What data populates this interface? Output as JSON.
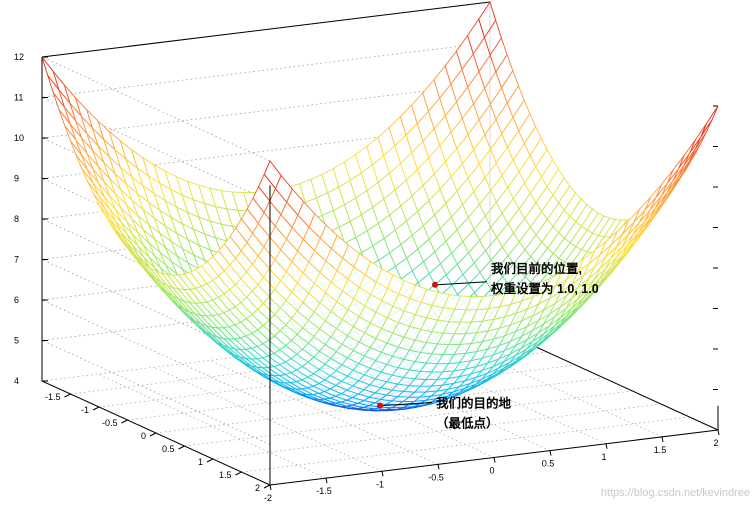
{
  "chart_data": {
    "type": "surface",
    "title": "",
    "function": "z = 4 + x^2 + y^2",
    "x_range": [
      -2,
      2
    ],
    "y_range": [
      -2,
      2
    ],
    "zlim": [
      4,
      12
    ],
    "grid": true,
    "colormap": [
      "#2020d0",
      "#00a8ff",
      "#30d8c8",
      "#a0e860",
      "#ffe040",
      "#ff9040",
      "#e01010"
    ],
    "z_ticks": [
      "4",
      "5",
      "6",
      "7",
      "8",
      "9",
      "10",
      "11",
      "12"
    ],
    "y_ticks": [
      "-1.5",
      "-1",
      "-0.5",
      "0",
      "0.5",
      "1",
      "1.5",
      "2"
    ],
    "x_ticks": [
      "-2",
      "-1.5",
      "-1",
      "-0.5",
      "0",
      "0.5",
      "1",
      "1.5",
      "2"
    ],
    "points": [
      {
        "name": "destination",
        "x": 0,
        "y": 0,
        "z": 4,
        "color": "#d01010",
        "label_lines": [
          "我们的目的地",
          "（最低点）"
        ]
      },
      {
        "name": "current-position",
        "x": 1.0,
        "y": 1.0,
        "z": 6,
        "color": "#d01010",
        "label_lines": [
          "我们目前的位置,",
          "权重设置为 1.0, 1.0"
        ]
      }
    ]
  },
  "watermark": "https://blog.csdn.net/kevindree"
}
